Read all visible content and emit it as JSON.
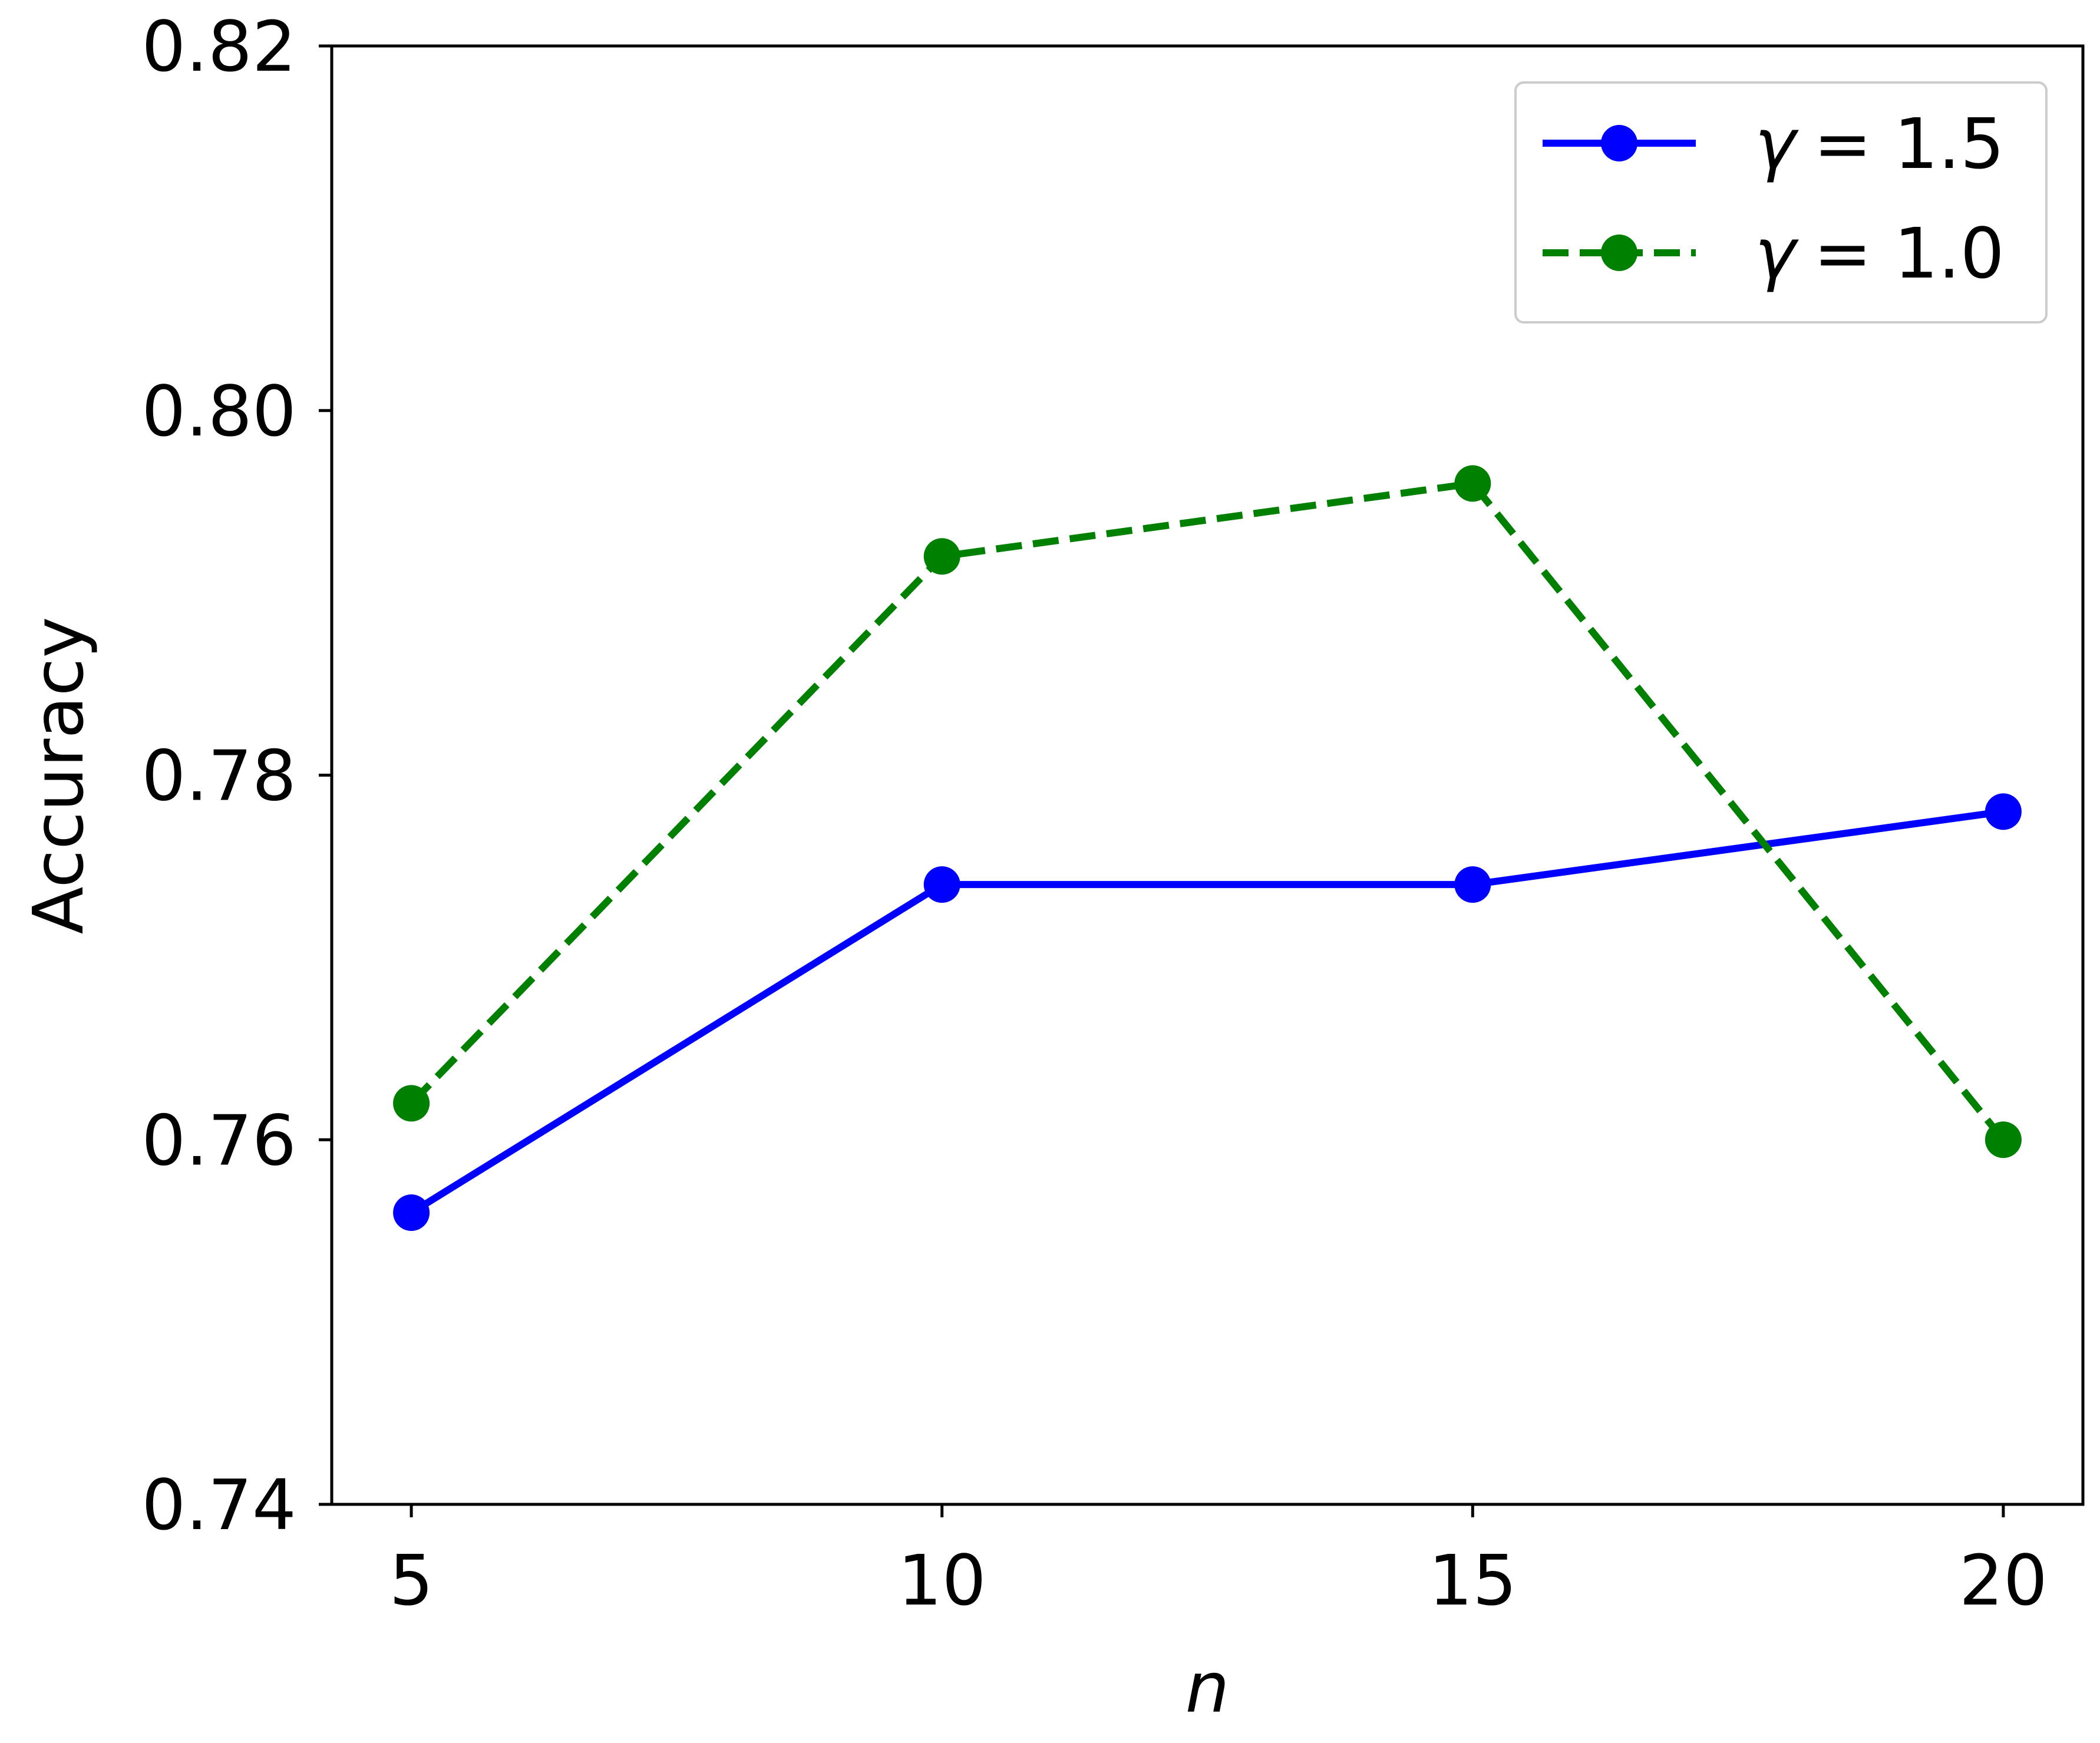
{
  "chart_data": {
    "type": "line",
    "title": "",
    "xlabel": "n",
    "ylabel": "Accuracy",
    "x": [
      5,
      10,
      15,
      20
    ],
    "x_ticks": [
      "5",
      "10",
      "15",
      "20"
    ],
    "y_ticks": [
      "0.74",
      "0.76",
      "0.78",
      "0.80",
      "0.82"
    ],
    "xlim": [
      4.25,
      20.75
    ],
    "ylim": [
      0.74,
      0.82
    ],
    "grid": false,
    "legend_position": "top-right",
    "series": [
      {
        "name": "γ = 1.5",
        "legend_symbol": "γ",
        "legend_value": "= 1.5",
        "values": [
          0.756,
          0.774,
          0.774,
          0.778
        ],
        "color": "#0000ff",
        "line_style": "solid",
        "marker": "circle"
      },
      {
        "name": "γ = 1.0",
        "legend_symbol": "γ",
        "legend_value": "= 1.0",
        "values": [
          0.762,
          0.792,
          0.796,
          0.76
        ],
        "color": "#008000",
        "line_style": "dashed",
        "marker": "circle"
      }
    ]
  }
}
